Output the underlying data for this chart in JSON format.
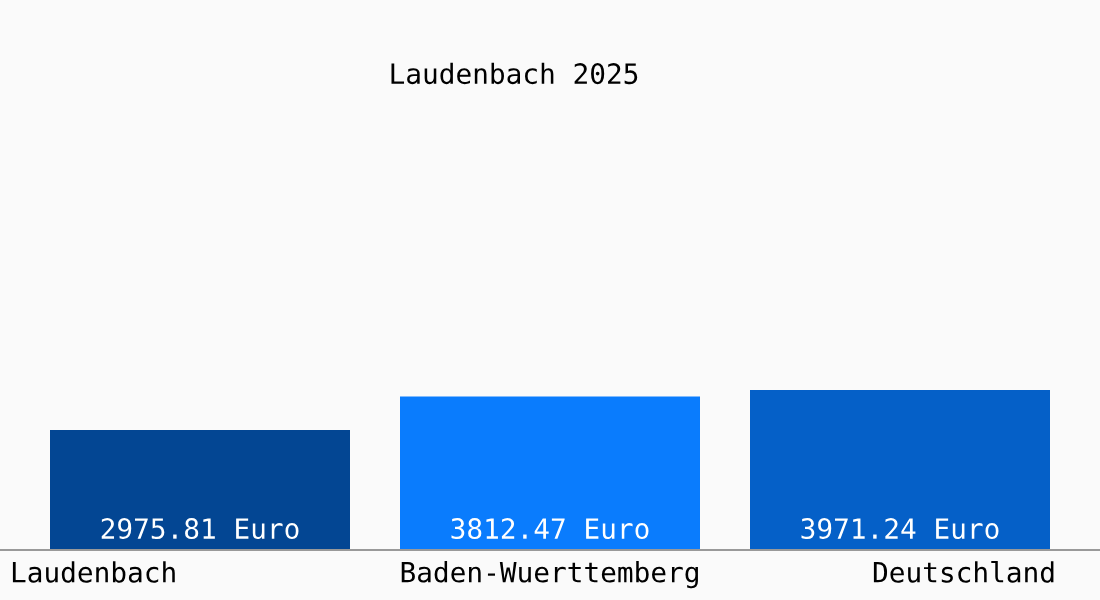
{
  "chart_data": {
    "type": "bar",
    "title": "Laudenbach 2025",
    "categories": [
      "Laudenbach",
      "Baden-Wuerttemberg",
      "Deutschland"
    ],
    "values": [
      2975.81,
      3812.47,
      3971.24
    ],
    "colors": [
      "#034693",
      "#0a7cfd",
      "#0560c8"
    ],
    "value_labels": [
      "2975.81 Euro",
      "3812.47 Euro",
      "3971.24 Euro"
    ]
  }
}
